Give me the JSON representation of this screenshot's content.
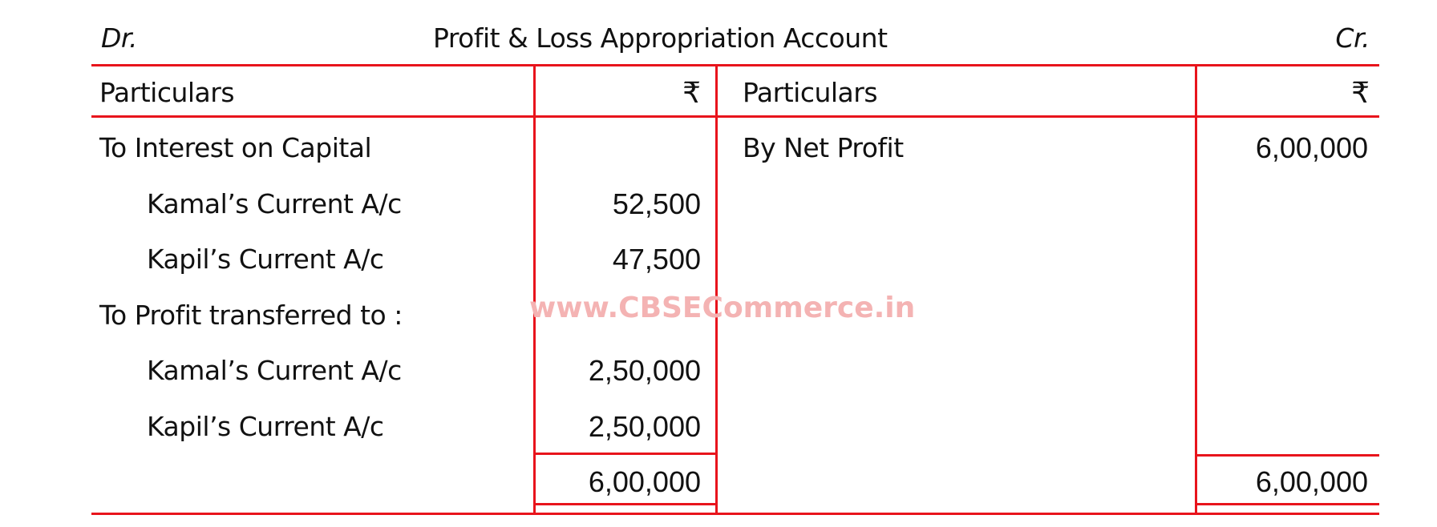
{
  "header": {
    "left": "Dr.",
    "title": "Profit & Loss Appropriation Account",
    "right": "Cr."
  },
  "columns": {
    "particulars": "Particulars",
    "amount": "₹"
  },
  "debit": [
    {
      "text": "To Interest on Capital",
      "amount": "",
      "indent": false
    },
    {
      "text": "Kamal’s Current A/c",
      "amount": "52,500",
      "indent": true
    },
    {
      "text": "Kapil’s Current  A/c",
      "amount": "47,500",
      "indent": true
    },
    {
      "text": "To Profit transferred to :",
      "amount": "",
      "indent": false
    },
    {
      "text": "Kamal’s Current A/c",
      "amount": "2,50,000",
      "indent": true
    },
    {
      "text": "Kapil’s Current  A/c",
      "amount": "2,50,000",
      "indent": true
    }
  ],
  "credit": [
    {
      "text": "By Net Profit",
      "amount": "6,00,000"
    }
  ],
  "totals": {
    "debit": "6,00,000",
    "credit": "6,00,000"
  },
  "watermark": "www.CBSECommerce.in",
  "colors": {
    "rule": "#e8141c",
    "watermark": "#f4b3b3"
  }
}
